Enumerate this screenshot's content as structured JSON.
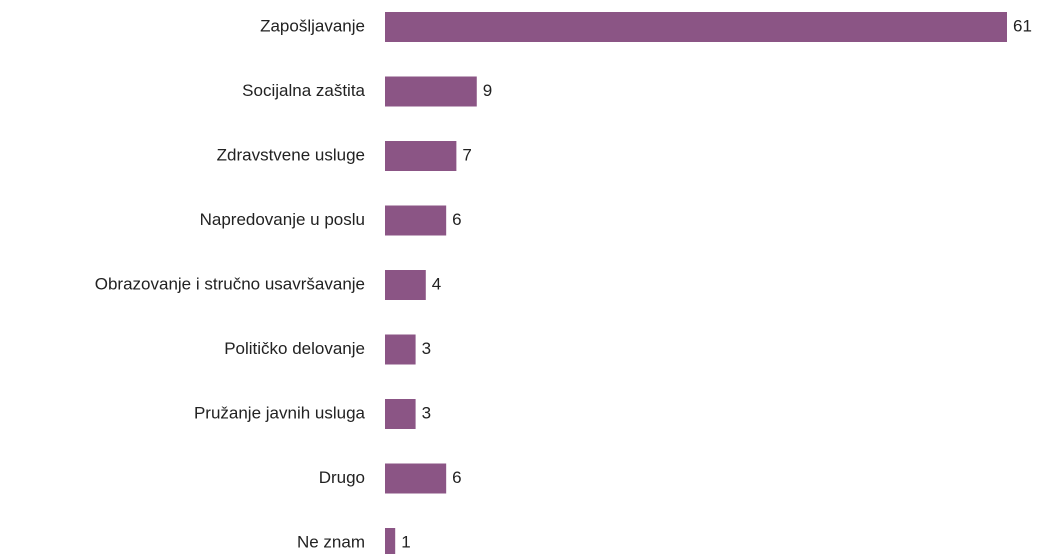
{
  "chart_data": {
    "type": "bar",
    "orientation": "horizontal",
    "categories": [
      "Zapošljavanje",
      "Socijalna zaštita",
      "Zdravstvene usluge",
      "Napredovanje u poslu",
      "Obrazovanje i stručno usavršavanje",
      "Političko delovanje",
      "Pružanje javnih usluga",
      "Drugo",
      "Ne znam"
    ],
    "values": [
      61,
      9,
      7,
      6,
      4,
      3,
      3,
      6,
      1
    ],
    "color": "#8b5585"
  }
}
